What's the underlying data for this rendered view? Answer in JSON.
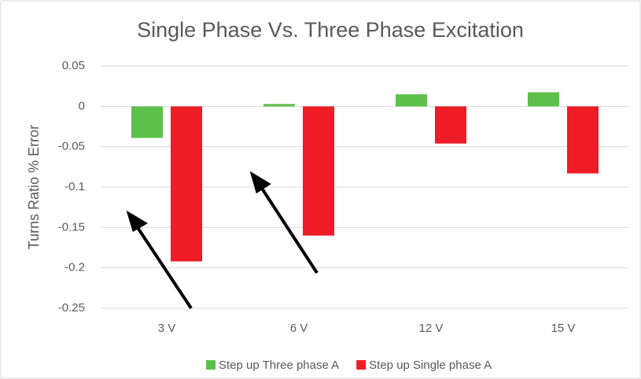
{
  "chart_data": {
    "type": "bar",
    "title": "Single Phase Vs. Three Phase Excitation",
    "y_label": "Turns Ratio % Error",
    "categories": [
      "3 V",
      "6 V",
      "12 V",
      "15 V"
    ],
    "series": [
      {
        "name": "Step up Three phase A",
        "color": "#5cc04a",
        "values": [
          -0.039,
          0.003,
          0.015,
          0.0175
        ]
      },
      {
        "name": "Step up Single phase A",
        "color": "#ee1c25",
        "values": [
          -0.192,
          -0.16,
          -0.046,
          -0.083
        ]
      }
    ],
    "ylim": [
      -0.25,
      0.05
    ],
    "yticks": [
      0.05,
      0,
      -0.05,
      -0.1,
      -0.15,
      -0.2,
      -0.25
    ],
    "grid": true,
    "legend": "bottom"
  }
}
